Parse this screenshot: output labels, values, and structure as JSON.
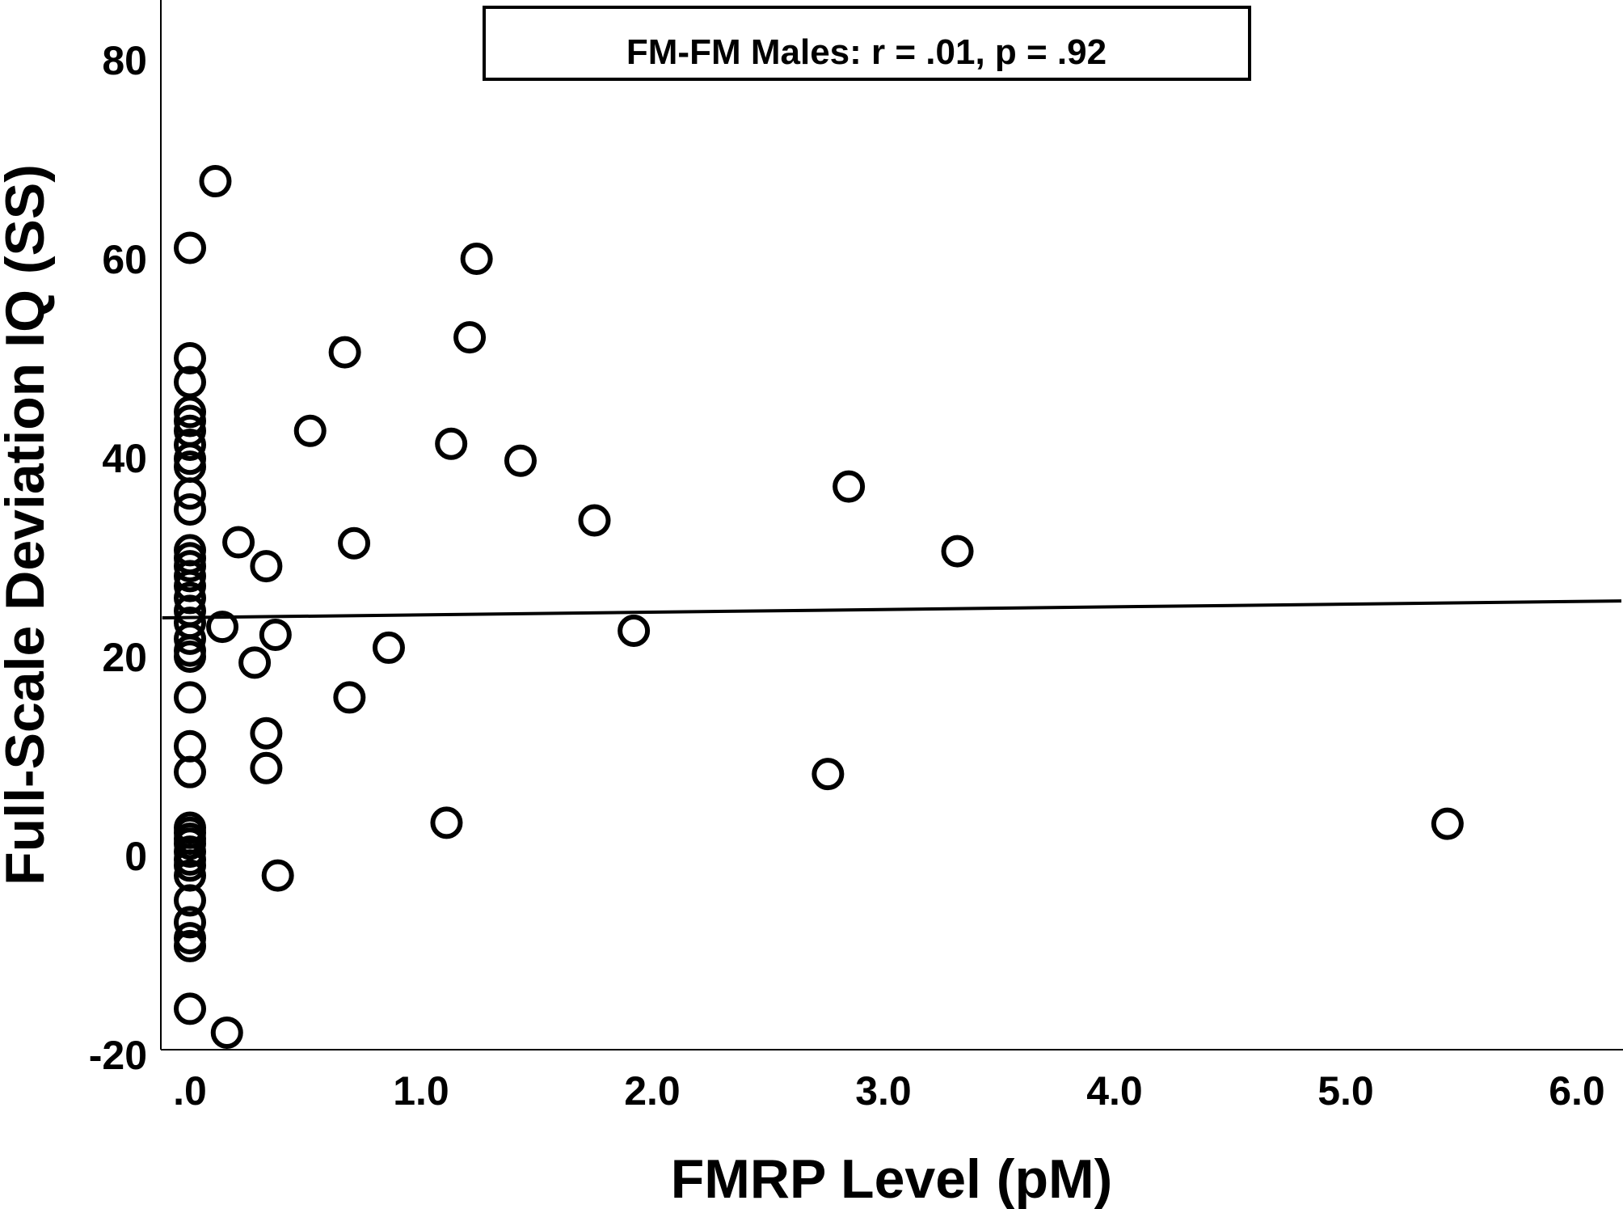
{
  "chart_data": {
    "type": "scatter",
    "title": "",
    "annotation": "FM-FM Males: r = .01, p = .92",
    "xlabel": "FMRP Level (pM)",
    "ylabel": "Full-Scale Deviation IQ (SS)",
    "xlim": [
      -0.13,
      6.2
    ],
    "ylim": [
      -20,
      86
    ],
    "x_ticks": [
      0,
      1,
      2,
      3,
      4,
      5,
      6
    ],
    "x_tick_labels": [
      ".0",
      "1.0",
      "2.0",
      "3.0",
      "4.0",
      "5.0",
      "6.0"
    ],
    "y_ticks": [
      -20,
      0,
      20,
      40,
      60,
      80
    ],
    "y_tick_labels": [
      "-20",
      "0",
      "20",
      "40",
      "60",
      "80"
    ],
    "grid": false,
    "legend": null,
    "marker": "open-circle",
    "regression_line": {
      "r": 0.01,
      "p": 0.92,
      "start": {
        "x": -0.12,
        "y": 23.9
      },
      "end": {
        "x": 6.2,
        "y": 25.6
      }
    },
    "series": [
      {
        "name": "FM-FM Males",
        "points": [
          {
            "x": 0.11,
            "y": 67.8
          },
          {
            "x": 0.0,
            "y": 61.1
          },
          {
            "x": 0.0,
            "y": 50.0
          },
          {
            "x": 0.0,
            "y": 47.6
          },
          {
            "x": 0.0,
            "y": 44.6
          },
          {
            "x": 0.0,
            "y": 43.7
          },
          {
            "x": 0.0,
            "y": 42.7
          },
          {
            "x": 0.0,
            "y": 41.3
          },
          {
            "x": 0.0,
            "y": 39.9
          },
          {
            "x": 0.0,
            "y": 39.1
          },
          {
            "x": 0.0,
            "y": 36.4
          },
          {
            "x": 0.0,
            "y": 34.8
          },
          {
            "x": 0.0,
            "y": 30.7
          },
          {
            "x": 0.0,
            "y": 29.9
          },
          {
            "x": 0.0,
            "y": 29.1
          },
          {
            "x": 0.0,
            "y": 28.1
          },
          {
            "x": 0.0,
            "y": 27.1
          },
          {
            "x": 0.0,
            "y": 25.9
          },
          {
            "x": 0.0,
            "y": 24.6
          },
          {
            "x": 0.0,
            "y": 23.4
          },
          {
            "x": 0.0,
            "y": 21.8
          },
          {
            "x": 0.0,
            "y": 20.6
          },
          {
            "x": 0.0,
            "y": 20.0
          },
          {
            "x": 0.0,
            "y": 15.9
          },
          {
            "x": 0.0,
            "y": 11.0
          },
          {
            "x": 0.0,
            "y": 8.4
          },
          {
            "x": 0.0,
            "y": 2.8
          },
          {
            "x": 0.0,
            "y": 2.3
          },
          {
            "x": 0.0,
            "y": 1.7
          },
          {
            "x": 0.0,
            "y": 1.2
          },
          {
            "x": 0.0,
            "y": 0.4
          },
          {
            "x": 0.0,
            "y": -0.4
          },
          {
            "x": 0.0,
            "y": -1.0
          },
          {
            "x": 0.0,
            "y": -2.0
          },
          {
            "x": 0.0,
            "y": -4.5
          },
          {
            "x": 0.0,
            "y": -6.7
          },
          {
            "x": 0.0,
            "y": -8.3
          },
          {
            "x": 0.0,
            "y": -9.1
          },
          {
            "x": 0.0,
            "y": -15.4
          },
          {
            "x": 0.16,
            "y": -17.8
          },
          {
            "x": 0.21,
            "y": 31.5
          },
          {
            "x": 0.33,
            "y": 29.1
          },
          {
            "x": 0.14,
            "y": 23.0
          },
          {
            "x": 0.37,
            "y": 22.2
          },
          {
            "x": 0.28,
            "y": 19.4
          },
          {
            "x": 0.33,
            "y": 12.3
          },
          {
            "x": 0.33,
            "y": 8.8
          },
          {
            "x": 0.38,
            "y": -2.0
          },
          {
            "x": 0.52,
            "y": 42.7
          },
          {
            "x": 0.67,
            "y": 50.6
          },
          {
            "x": 0.71,
            "y": 31.4
          },
          {
            "x": 0.69,
            "y": 15.9
          },
          {
            "x": 0.86,
            "y": 20.9
          },
          {
            "x": 1.11,
            "y": 3.3
          },
          {
            "x": 1.13,
            "y": 41.4
          },
          {
            "x": 1.21,
            "y": 52.1
          },
          {
            "x": 1.24,
            "y": 60.0
          },
          {
            "x": 1.43,
            "y": 39.7
          },
          {
            "x": 1.75,
            "y": 33.7
          },
          {
            "x": 1.92,
            "y": 22.6
          },
          {
            "x": 2.76,
            "y": 8.2
          },
          {
            "x": 2.85,
            "y": 37.1
          },
          {
            "x": 3.32,
            "y": 30.6
          },
          {
            "x": 5.44,
            "y": 3.2
          }
        ]
      }
    ]
  },
  "colors": {
    "foreground": "#000000",
    "background": "#ffffff"
  }
}
